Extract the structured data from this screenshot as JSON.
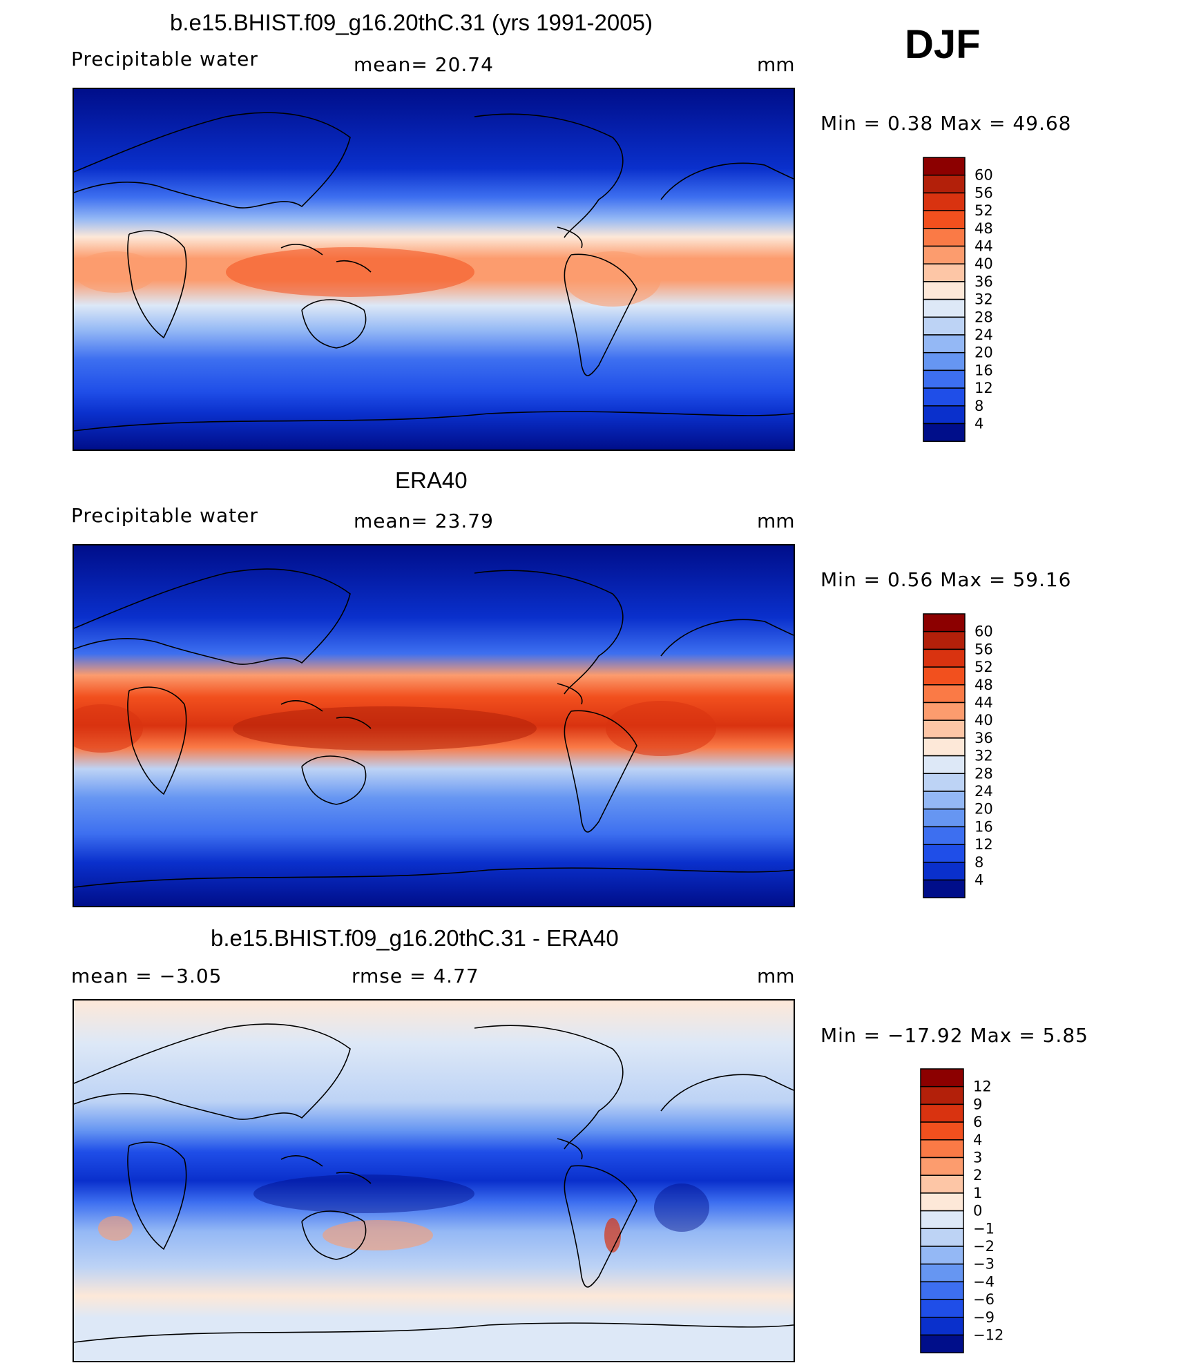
{
  "season": "DJF",
  "panels": [
    {
      "title": "b.e15.BHIST.f09_g16.20thC.31 (yrs 1991-2005)",
      "left_label": "Precipitable  water",
      "center_label": "mean=   20.74",
      "units": "mm",
      "minmax": "Min  =    0.38  Max  =    49.68",
      "kind": "abs"
    },
    {
      "title": "ERA40",
      "left_label": "Precipitable  water",
      "center_label": "mean=   23.79",
      "units": "mm",
      "minmax": "Min  =    0.56  Max  =    59.16",
      "kind": "abs"
    },
    {
      "title": "b.e15.BHIST.f09_g16.20thC.31 - ERA40",
      "left_label": "mean  =    −3.05",
      "center_label": "rmse  =     4.77",
      "units": "mm",
      "minmax": "Min  = −17.92  Max  =      5.85",
      "kind": "diff"
    }
  ],
  "colorbars": {
    "abs": {
      "labels": [
        "60",
        "56",
        "52",
        "48",
        "44",
        "40",
        "36",
        "32",
        "28",
        "24",
        "20",
        "16",
        "12",
        "8",
        "4"
      ],
      "colors": [
        "#8c0000",
        "#b3200a",
        "#d93310",
        "#f2501e",
        "#fa7a46",
        "#fc9c6e",
        "#fdc6a6",
        "#fde8d8",
        "#dde8f7",
        "#bdd3f5",
        "#94b8f5",
        "#6696f2",
        "#3d6ff0",
        "#1f4ee8",
        "#0a30cc",
        "#000e8a"
      ]
    },
    "diff": {
      "labels": [
        "12",
        "9",
        "6",
        "4",
        "3",
        "2",
        "1",
        "0",
        "−1",
        "−2",
        "−3",
        "−4",
        "−6",
        "−9",
        "−12"
      ],
      "colors": [
        "#8c0000",
        "#b3200a",
        "#d93310",
        "#f2501e",
        "#fa7a46",
        "#fc9c6e",
        "#fdc6a6",
        "#fde8d8",
        "#dde8f7",
        "#bdd3f5",
        "#94b8f5",
        "#6696f2",
        "#3d6ff0",
        "#1f4ee8",
        "#0a30cc",
        "#000e8a"
      ]
    }
  }
}
